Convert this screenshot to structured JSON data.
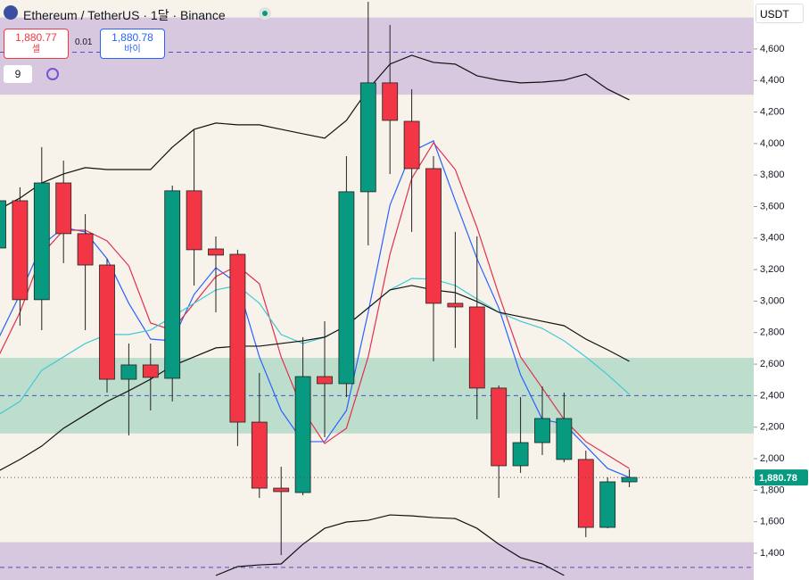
{
  "header": {
    "symbol": "Ethereum / TetherUS · 1달 · Binance",
    "sell_price": "1,880.77",
    "sell_label": "셀",
    "spread": "0.01",
    "buy_price": "1,880.78",
    "buy_label": "바이",
    "indicator_count": "9",
    "currency": "USDT"
  },
  "chart_data": {
    "type": "candlestick",
    "ylim": [
      1230,
      4911
    ],
    "yticks": [
      {
        "value": 1400,
        "label": "1,400"
      },
      {
        "value": 1600,
        "label": "1,600"
      },
      {
        "value": 1800,
        "label": "1,800"
      },
      {
        "value": 2000,
        "label": "2,000"
      },
      {
        "value": 2200,
        "label": "2,200"
      },
      {
        "value": 2400,
        "label": "2,400"
      },
      {
        "value": 2600,
        "label": "2,600"
      },
      {
        "value": 2800,
        "label": "2,800"
      },
      {
        "value": 3000,
        "label": "3,000"
      },
      {
        "value": 3200,
        "label": "3,200"
      },
      {
        "value": 3400,
        "label": "3,400"
      },
      {
        "value": 3600,
        "label": "3,600"
      },
      {
        "value": 3800,
        "label": "3,800"
      },
      {
        "value": 4000,
        "label": "4,000"
      },
      {
        "value": 4200,
        "label": "4,200"
      },
      {
        "value": 4400,
        "label": "4,400"
      },
      {
        "value": 4600,
        "label": "4,600"
      }
    ],
    "up_color": "#089981",
    "down_color": "#f23645",
    "open": [
      3337,
      3637,
      3009,
      3750,
      3428,
      3229,
      2504,
      2595,
      2510,
      3700,
      3331,
      3297,
      2232,
      1813,
      1785,
      2521,
      2476,
      3694,
      4385,
      4141,
      3841,
      2986,
      2963,
      2448,
      1955,
      2102,
      1995,
      1995,
      1564,
      1853
    ],
    "close": [
      3637,
      3009,
      3750,
      3428,
      3229,
      2504,
      2595,
      2516,
      3700,
      3326,
      3292,
      2232,
      1813,
      1791,
      2521,
      2476,
      3694,
      4385,
      4147,
      3841,
      2986,
      2963,
      2448,
      1955,
      2102,
      2255,
      2255,
      1564,
      1853,
      1881
    ],
    "high": [
      3650,
      3722,
      3977,
      3892,
      3552,
      3269,
      2731,
      2731,
      3733,
      4090,
      3410,
      3326,
      2544,
      1949,
      2771,
      2872,
      3920,
      4900,
      4753,
      4345,
      3920,
      3439,
      3411,
      2465,
      2391,
      2459,
      2419,
      2051,
      1881,
      1932
    ],
    "low": [
      3300,
      2844,
      2816,
      3241,
      2816,
      2419,
      2147,
      2306,
      2363,
      3099,
      2929,
      2080,
      1751,
      1388,
      1768,
      2136,
      2391,
      3354,
      3807,
      3439,
      2618,
      2703,
      2249,
      1751,
      1910,
      2023,
      1977,
      1502,
      1558,
      1819
    ],
    "overlays": [
      {
        "color": "#2962ff",
        "values": [
          2760,
          3043,
          3354,
          3467,
          3439,
          3269,
          2986,
          2759,
          2748,
          3042,
          3212,
          3110,
          2646,
          2306,
          2108,
          2108,
          2306,
          2929,
          3609,
          3949,
          4017,
          3637,
          3269,
          2957,
          2533,
          2249,
          2221,
          2080,
          1938,
          1881
        ]
      },
      {
        "color": "#e03050",
        "values": [
          2646,
          2929,
          3297,
          3450,
          3450,
          3382,
          3224,
          2861,
          2816,
          2986,
          3156,
          3224,
          3110,
          2646,
          2306,
          2096,
          2193,
          2646,
          3297,
          3779,
          4005,
          3835,
          3467,
          3042,
          2646,
          2448,
          2249,
          2108,
          2023,
          1938
        ]
      },
      {
        "color": "#40c8d8",
        "values": [
          2278,
          2363,
          2561,
          2646,
          2731,
          2788,
          2788,
          2816,
          2901,
          2986,
          3071,
          3099,
          2986,
          2788,
          2731,
          2771,
          2844,
          2957,
          3071,
          3144,
          3139,
          3099,
          3014,
          2929,
          2872,
          2827,
          2748,
          2646,
          2533,
          2408
        ]
      },
      {
        "color": "#111111",
        "values": [
          1921,
          1995,
          2080,
          2193,
          2278,
          2363,
          2431,
          2504,
          2589,
          2646,
          2703,
          2714,
          2714,
          2731,
          2748,
          2771,
          2844,
          2957,
          3071,
          3099,
          3071,
          3054,
          2997,
          2929,
          2901,
          2872,
          2844,
          2759,
          2691,
          2618
        ]
      },
      {
        "color": "#111111",
        "values": [
          3580,
          3654,
          3750,
          3807,
          3847,
          3835,
          3835,
          3835,
          3977,
          4090,
          4130,
          4119,
          4119,
          4090,
          4062,
          4034,
          4147,
          4345,
          4504,
          4560,
          4515,
          4504,
          4430,
          4402,
          4385,
          4390,
          4402,
          4441,
          4345,
          4277
        ]
      },
      {
        "color": "#111111",
        "values": [
          null,
          null,
          null,
          null,
          null,
          null,
          null,
          null,
          null,
          null,
          1259,
          1315,
          1326,
          1332,
          1457,
          1558,
          1598,
          1609,
          1643,
          1637,
          1626,
          1620,
          1558,
          1457,
          1372,
          1332,
          1259,
          null,
          null,
          null
        ]
      }
    ],
    "zones": [
      {
        "range": [
          4310,
          4800
        ],
        "color": "rgba(150,110,200,0.32)"
      },
      {
        "range": [
          2160,
          2640
        ],
        "color": "rgba(40,170,130,0.28)"
      },
      {
        "range": [
          1230,
          1470
        ],
        "color": "rgba(150,110,200,0.32)"
      }
    ],
    "dashed_levels": [
      4580,
      2400,
      1310
    ],
    "last_price": {
      "value": 1880.78,
      "label": "1,880.78"
    }
  }
}
